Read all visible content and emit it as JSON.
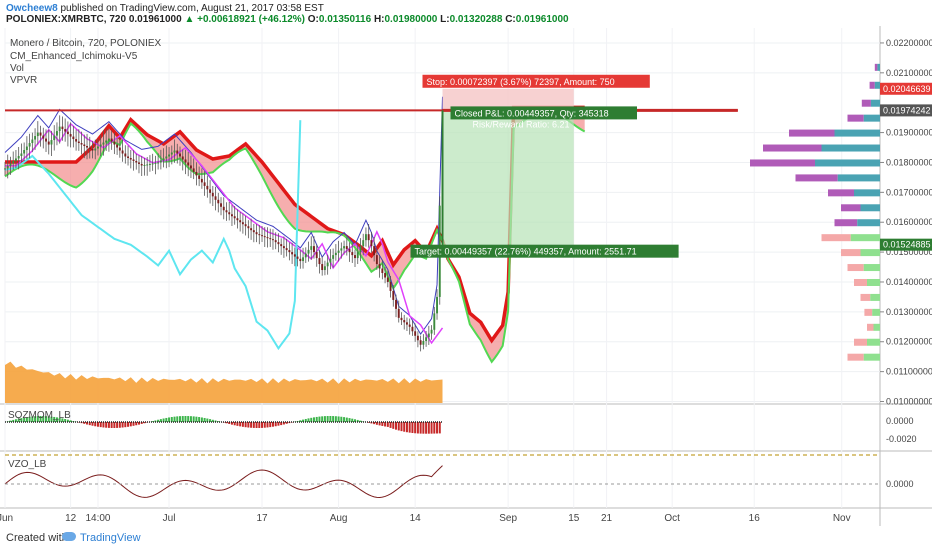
{
  "header": {
    "author": "Owcheew8",
    "published_text": "published on TradingView.com, August 21, 2017 03:58 EST",
    "symbol": "POLONIEX:XMRBTC, 720",
    "last": "0.01961000",
    "change": "▲ +0.00618921 (+46.12%)",
    "o_label": "O:",
    "o": "0.01350116",
    "h_label": "H:",
    "h": "0.01980000",
    "l_label": "L:",
    "l": "0.01320288",
    "c_label": "C:",
    "c": "0.01961000"
  },
  "legend": {
    "title": "Monero / Bitcoin, 720, POLONIEX",
    "indicators": [
      "CM_Enhanced_Ichimoku-V5",
      "Vol",
      "VPVR"
    ]
  },
  "panes": {
    "sqz_label": "SQZMOM_LB",
    "vzo_label": "VZO_LB",
    "sqz_ticks": [
      "0.0000",
      "-0.0020"
    ],
    "vzo_ticks": [
      "0.0000"
    ]
  },
  "colors": {
    "up": "#26a69a",
    "down": "#ef5350",
    "stop": "#e53935",
    "target": "#2e7d32",
    "kumo_bear": "#f28b8b",
    "kumo_bull": "#9be29b",
    "tenkan": "#e040fb",
    "chikou": "#5ee6f0",
    "kijun": "#3f3fbf",
    "volume": "#f5a23b",
    "vpvr_up": "#4aa3b3",
    "vpvr_down": "#b05bb8"
  },
  "chart_data": {
    "type": "candlestick",
    "title": "Monero / Bitcoin, 720, POLONIEX",
    "y_ticks": [
      "0.02200000",
      "0.02100000",
      "0.01900000",
      "0.01800000",
      "0.01700000",
      "0.01600000",
      "0.01500000",
      "0.01400000",
      "0.01300000",
      "0.01200000",
      "0.01100000",
      "0.01000000"
    ],
    "y_tick_values": [
      0.022,
      0.021,
      0.019,
      0.018,
      0.017,
      0.016,
      0.015,
      0.014,
      0.013,
      0.012,
      0.011,
      0.01
    ],
    "price_labels": [
      {
        "text": "0.02046639",
        "value": 0.02046639,
        "color": "#e53935"
      },
      {
        "text": "0.01974242",
        "value": 0.01974242,
        "color": "#555555"
      },
      {
        "text": "0.01524885",
        "value": 0.01524885,
        "color": "#2e7d32"
      }
    ],
    "x_ticks": [
      "Jun",
      "12",
      "14:00",
      "Jul",
      "17",
      "Aug",
      "14",
      "Sep",
      "15",
      "21",
      "Oct",
      "16",
      "Nov"
    ],
    "x_tick_days": [
      0,
      12,
      17,
      30,
      47,
      61,
      75,
      92,
      104,
      110,
      122,
      137,
      153
    ],
    "x_last_day": 80,
    "candles_close_anchors": [
      [
        0,
        0.0178
      ],
      [
        3,
        0.0183
      ],
      [
        6,
        0.019
      ],
      [
        8,
        0.0186
      ],
      [
        10,
        0.0192
      ],
      [
        13,
        0.0187
      ],
      [
        16,
        0.0184
      ],
      [
        19,
        0.0188
      ],
      [
        22,
        0.0182
      ],
      [
        25,
        0.0179
      ],
      [
        28,
        0.018
      ],
      [
        31,
        0.0184
      ],
      [
        34,
        0.0178
      ],
      [
        37,
        0.0171
      ],
      [
        40,
        0.0164
      ],
      [
        43,
        0.016
      ],
      [
        46,
        0.0156
      ],
      [
        49,
        0.0154
      ],
      [
        52,
        0.015
      ],
      [
        54,
        0.0147
      ],
      [
        56,
        0.0152
      ],
      [
        58,
        0.0144
      ],
      [
        60,
        0.0149
      ],
      [
        62,
        0.0152
      ],
      [
        64,
        0.0148
      ],
      [
        66,
        0.0156
      ],
      [
        67,
        0.0152
      ],
      [
        68,
        0.0146
      ],
      [
        70,
        0.014
      ],
      [
        72,
        0.0128
      ],
      [
        74,
        0.0125
      ],
      [
        76,
        0.0119
      ],
      [
        78,
        0.0124
      ],
      [
        79,
        0.0135
      ],
      [
        80,
        0.01961
      ]
    ],
    "stop_label": "Stop: 0.00072397 (3.67%) 72397, Amount: 750",
    "target_label": "Target: 0.00449357 (22.76%) 449357, Amount: 2551.71",
    "pnl_label": "Closed P&L: 0.00449357, Qty: 345318",
    "rr_label": "Risk/Reward Ratio: 6.21",
    "position": {
      "entry": 0.01974242,
      "stop": 0.02046639,
      "target": 0.01524885,
      "start_day": 80,
      "end_day": 104
    },
    "horizontal_line": 0.01974242
  },
  "footer": {
    "created": "Created with",
    "brand": "TradingView"
  }
}
